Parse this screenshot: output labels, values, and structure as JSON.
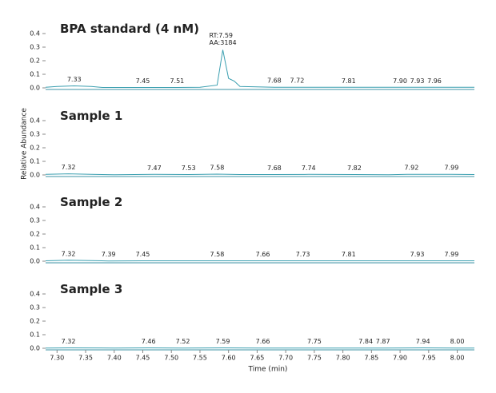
{
  "chart_data": [
    {
      "type": "line",
      "title": "BPA standard (4 nM)",
      "color": "#3a9fb0",
      "x": [
        7.28,
        7.3,
        7.33,
        7.36,
        7.38,
        7.45,
        7.51,
        7.55,
        7.58,
        7.59,
        7.6,
        7.61,
        7.62,
        7.68,
        7.72,
        7.81,
        7.9,
        7.96,
        8.03
      ],
      "values": [
        0.005,
        0.01,
        0.015,
        0.01,
        0.003,
        0.003,
        0.003,
        0.005,
        0.02,
        0.28,
        0.07,
        0.05,
        0.01,
        0.005,
        0.005,
        0.004,
        0.004,
        0.004,
        0.004
      ],
      "xlim": [
        7.28,
        8.03
      ],
      "ylim": [
        0,
        0.45
      ],
      "yticks": [
        {
          "value": 0,
          "label": "0.0"
        },
        0.1,
        0.2,
        0.3,
        0.4
      ],
      "peak_labels": [
        7.33,
        7.45,
        7.51,
        7.68,
        7.72,
        7.81,
        {
          "value": 7.9,
          "label": "7.90"
        },
        7.93,
        7.96
      ],
      "annotations": [
        "RT:7.59",
        "AA:3184"
      ]
    },
    {
      "type": "line",
      "title": "Sample 1",
      "color": "#3a9fb0",
      "ylabel": "Relative Abundance",
      "x": [
        7.28,
        7.32,
        7.36,
        7.4,
        7.47,
        7.53,
        7.58,
        7.62,
        7.68,
        7.74,
        7.82,
        7.88,
        7.92,
        7.99,
        8.03
      ],
      "values": [
        0.004,
        0.008,
        0.004,
        0.001,
        0.004,
        0.003,
        0.006,
        0.003,
        0.003,
        0.004,
        0.003,
        0.002,
        0.005,
        0.005,
        0.003
      ],
      "xlim": [
        7.28,
        8.03
      ],
      "ylim": [
        0,
        0.45
      ],
      "yticks": [
        {
          "value": 0,
          "label": "0.0"
        },
        0.1,
        0.2,
        0.3,
        0.4
      ],
      "peak_labels": [
        7.32,
        7.47,
        7.53,
        7.58,
        7.68,
        7.74,
        7.82,
        7.92,
        7.99
      ]
    },
    {
      "type": "line",
      "title": "Sample 2",
      "color": "#3a9fb0",
      "x": [
        7.28,
        7.32,
        7.36,
        7.39,
        7.45,
        7.58,
        7.66,
        7.73,
        7.81,
        7.93,
        7.99,
        8.03
      ],
      "values": [
        0.003,
        0.007,
        0.004,
        0.002,
        0.003,
        0.003,
        0.003,
        0.003,
        0.003,
        0.003,
        0.003,
        0.003
      ],
      "xlim": [
        7.28,
        8.03
      ],
      "ylim": [
        0,
        0.45
      ],
      "yticks": [
        {
          "value": 0,
          "label": "0.0"
        },
        0.1,
        0.2,
        0.3,
        0.4
      ],
      "peak_labels": [
        7.32,
        7.39,
        7.45,
        7.58,
        7.66,
        7.73,
        7.81,
        7.93,
        7.99
      ]
    },
    {
      "type": "line",
      "title": "Sample 3",
      "color": "#3a9fb0",
      "xlabel": "Time (min)",
      "x": [
        7.28,
        7.32,
        7.4,
        7.46,
        7.52,
        7.59,
        7.66,
        7.75,
        7.84,
        7.87,
        7.94,
        8.0,
        8.03
      ],
      "values": [
        0.002,
        0.003,
        0.002,
        0.003,
        0.002,
        0.003,
        0.002,
        0.002,
        0.002,
        0.002,
        0.003,
        0.002,
        0.002
      ],
      "xlim": [
        7.28,
        8.03
      ],
      "ylim": [
        0,
        0.45
      ],
      "yticks": [
        {
          "value": 0,
          "label": "0.0"
        },
        0.1,
        0.2,
        0.3,
        0.4
      ],
      "xticks": [
        {
          "value": 7.3,
          "label": "7.30"
        },
        7.35,
        {
          "value": 7.4,
          "label": "7.40"
        },
        7.45,
        {
          "value": 7.5,
          "label": "7.50"
        },
        7.55,
        {
          "value": 7.6,
          "label": "7.60"
        },
        7.65,
        {
          "value": 7.7,
          "label": "7.70"
        },
        7.75,
        {
          "value": 7.8,
          "label": "7.80"
        },
        7.85,
        {
          "value": 7.9,
          "label": "7.90"
        },
        7.95,
        {
          "value": 8,
          "label": "8.00"
        }
      ],
      "peak_labels": [
        7.32,
        7.46,
        7.52,
        7.59,
        7.66,
        7.75,
        7.84,
        7.87,
        7.94,
        {
          "value": 8,
          "label": "8.00"
        }
      ]
    }
  ]
}
